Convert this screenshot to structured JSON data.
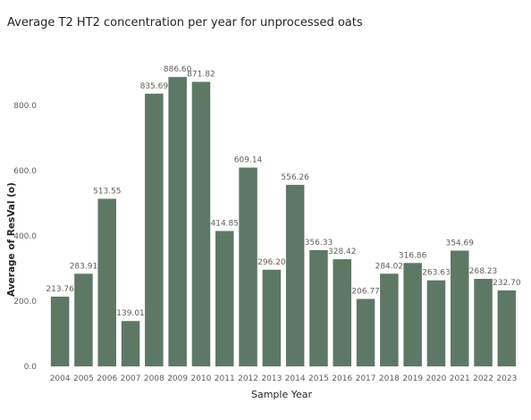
{
  "chart_data": {
    "type": "bar",
    "title": "Average T2 HT2 concentration per year for unprocessed oats",
    "xlabel": "Sample Year",
    "ylabel": "Average of ResVal (o)",
    "categories": [
      "2004",
      "2005",
      "2006",
      "2007",
      "2008",
      "2009",
      "2010",
      "2011",
      "2012",
      "2013",
      "2014",
      "2015",
      "2016",
      "2017",
      "2018",
      "2019",
      "2020",
      "2021",
      "2022",
      "2023"
    ],
    "values": [
      213.76,
      283.91,
      513.55,
      139.01,
      835.69,
      886.6,
      871.82,
      414.85,
      609.14,
      296.2,
      556.26,
      356.33,
      328.42,
      206.77,
      284.02,
      316.86,
      263.63,
      354.69,
      268.23,
      232.7
    ],
    "data_labels": [
      "213.76",
      "283.91",
      "513.55",
      "139.01",
      "835.69",
      "886.60",
      "871.82",
      "414.85",
      "609.14",
      "296.20",
      "556.26",
      "356.33",
      "328.42",
      "206.77",
      "284.02",
      "316.86",
      "263.63",
      "354.69",
      "268.23",
      "232.70"
    ],
    "yticks": [
      0,
      200,
      400,
      600,
      800
    ],
    "ytick_labels": [
      "0.0",
      "200.0",
      "400.0",
      "600.0",
      "800.0"
    ],
    "ylim": [
      0,
      920
    ],
    "grid": false,
    "legend": "none",
    "bar_color": "#5e7866"
  }
}
